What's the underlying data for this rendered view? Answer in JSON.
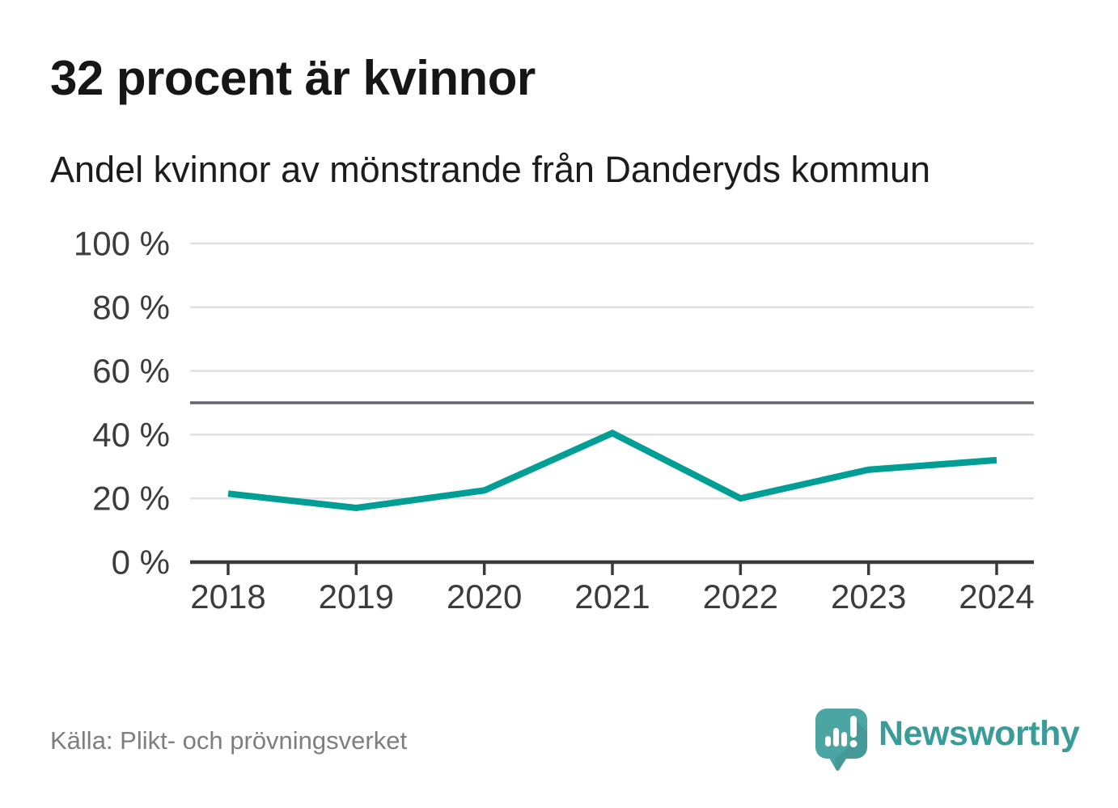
{
  "header": {
    "title": "32 procent är kvinnor",
    "subtitle": "Andel kvinnor av mönstrande från Danderyds kommun"
  },
  "chart_data": {
    "type": "line",
    "title": "32 procent är kvinnor",
    "subtitle": "Andel kvinnor av mönstrande från Danderyds kommun",
    "categories": [
      "2018",
      "2019",
      "2020",
      "2021",
      "2022",
      "2023",
      "2024"
    ],
    "series": [
      {
        "name": "Andel kvinnor av mönstrande",
        "values": [
          21.5,
          17,
          22.5,
          40.5,
          20,
          29,
          32
        ]
      }
    ],
    "unit": "%",
    "ylim": [
      0,
      100
    ],
    "y_ticks": [
      0,
      20,
      40,
      60,
      80,
      100
    ],
    "y_tick_labels": [
      "0 %",
      "20 %",
      "40 %",
      "60 %",
      "80 %",
      "100 %"
    ],
    "reference_line": 50,
    "grid": "horizontal",
    "legend": "none",
    "colors": {
      "line": "#009E94",
      "gridline": "#E1E1E1",
      "reference_line": "#64646C",
      "axis": "#3A3A3A",
      "tick_label": "#3C3C3C"
    }
  },
  "footer": {
    "source": "Källa: Plikt- och prövningsverket",
    "brand": "Newsworthy",
    "brand_color": "#3A9C99",
    "logo_icon_color": "#4BA6A3"
  }
}
